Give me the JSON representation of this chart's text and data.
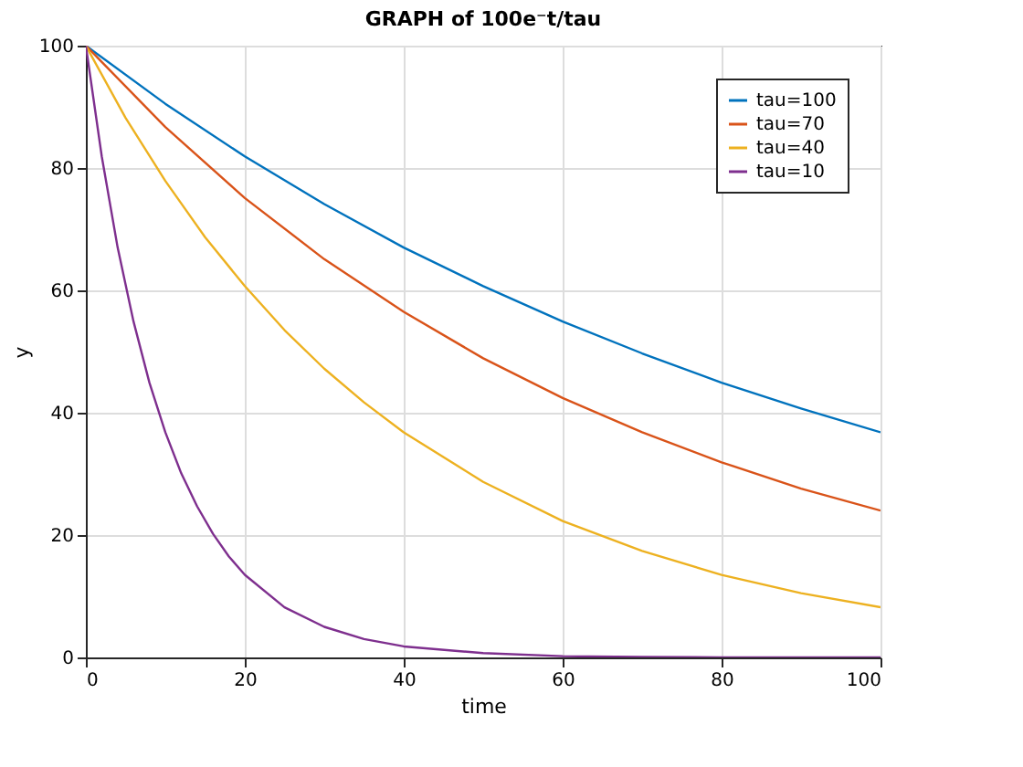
{
  "chart_data": {
    "type": "line",
    "title": "GRAPH of 100e⁻t/tau",
    "xlabel": "time",
    "ylabel": "y",
    "xlim": [
      0,
      100
    ],
    "ylim": [
      0,
      100
    ],
    "xticks": [
      0,
      20,
      40,
      60,
      80,
      100
    ],
    "yticks": [
      0,
      20,
      40,
      60,
      80,
      100
    ],
    "grid": true,
    "legend": "top right",
    "marker": "none",
    "line_style": "solid",
    "series": [
      {
        "name": "tau=100",
        "color": "#0072bd",
        "x": [
          0,
          10,
          20,
          30,
          40,
          50,
          60,
          70,
          80,
          90,
          100
        ],
        "values": [
          100,
          90.5,
          81.9,
          74.1,
          67.0,
          60.7,
          54.9,
          49.7,
          44.9,
          40.7,
          36.8
        ]
      },
      {
        "name": "tau=70",
        "color": "#d95319",
        "x": [
          0,
          10,
          20,
          30,
          40,
          50,
          60,
          70,
          80,
          90,
          100
        ],
        "values": [
          100,
          86.7,
          75.1,
          65.1,
          56.5,
          48.9,
          42.4,
          36.8,
          31.9,
          27.6,
          24.0
        ]
      },
      {
        "name": "tau=40",
        "color": "#edb120",
        "x": [
          0,
          5,
          10,
          15,
          20,
          25,
          30,
          35,
          40,
          50,
          60,
          70,
          80,
          90,
          100
        ],
        "values": [
          100,
          88.2,
          77.9,
          68.7,
          60.7,
          53.5,
          47.2,
          41.7,
          36.8,
          28.7,
          22.3,
          17.4,
          13.5,
          10.5,
          8.2
        ]
      },
      {
        "name": "tau=10",
        "color": "#7e2f8e",
        "x": [
          0,
          2,
          4,
          6,
          8,
          10,
          12,
          14,
          16,
          18,
          20,
          25,
          30,
          35,
          40,
          50,
          60,
          70,
          80,
          100
        ],
        "values": [
          100,
          81.9,
          67.0,
          54.9,
          44.9,
          36.8,
          30.1,
          24.7,
          20.2,
          16.5,
          13.5,
          8.2,
          5.0,
          3.0,
          1.8,
          0.7,
          0.2,
          0.1,
          0,
          0
        ]
      }
    ]
  }
}
